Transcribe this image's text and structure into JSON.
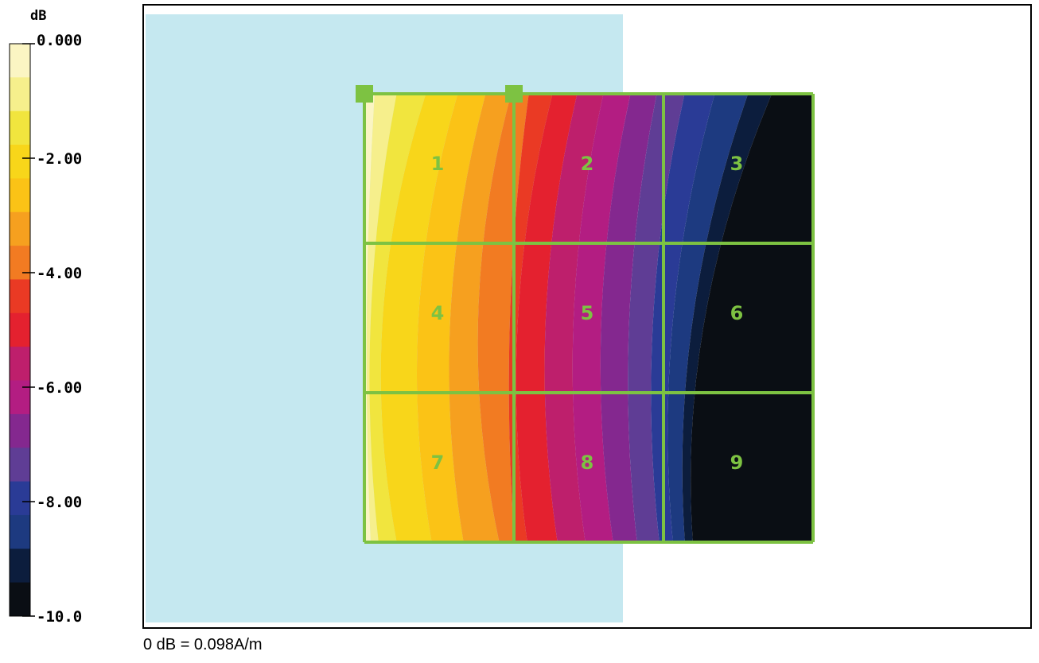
{
  "chart_data": {
    "type": "heatmap",
    "unit": "dB",
    "scale_min": -10.0,
    "scale_max": 0.0,
    "colorbar": {
      "tick_labels": [
        "0.000",
        "-2.00",
        "-4.00",
        "-6.00",
        "-8.00",
        "-10.0"
      ],
      "tick_values": [
        0,
        -2,
        -4,
        -6,
        -8,
        -10
      ],
      "colors": [
        "#fbf5c3",
        "#f6ef8c",
        "#f1e53e",
        "#f8d61a",
        "#fbc316",
        "#f6a01f",
        "#f27b22",
        "#ea3a24",
        "#e4212f",
        "#be1f6c",
        "#b31d82",
        "#84288f",
        "#5f3d95",
        "#2a3b96",
        "#1d3a80",
        "#0c1d3d",
        "#0a0e14"
      ]
    },
    "grid": {
      "rows": 3,
      "cols": 3,
      "cell_labels": [
        "1",
        "2",
        "3",
        "4",
        "5",
        "6",
        "7",
        "8",
        "9"
      ]
    },
    "reference": "0 dB = 0.098A/m"
  },
  "colors": {
    "grid_line": "#7dc242",
    "label": "#7dc242",
    "shaded_region": "#c5e8f0"
  }
}
